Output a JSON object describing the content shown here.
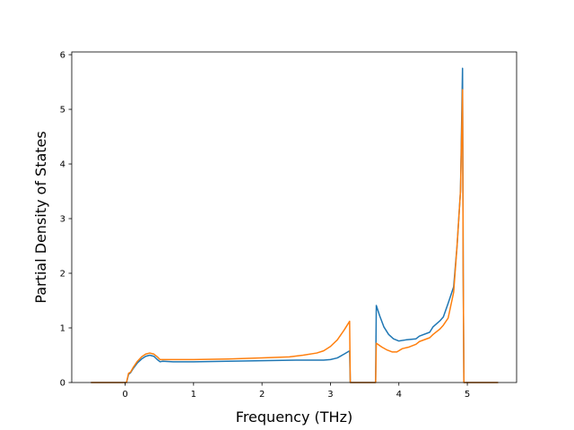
{
  "chart_data": {
    "type": "line",
    "title": "",
    "xlabel": "Frequency (THz)",
    "ylabel": "Partial Density of States",
    "xlim": [
      -0.78,
      5.72
    ],
    "ylim": [
      0,
      6.05
    ],
    "xticks": [
      0,
      1,
      2,
      3,
      4,
      5
    ],
    "yticks": [
      0,
      1,
      2,
      3,
      4,
      5,
      6
    ],
    "xtick_labels": [
      "0",
      "1",
      "2",
      "3",
      "4",
      "5"
    ],
    "ytick_labels": [
      "0",
      "1",
      "2",
      "3",
      "4",
      "5",
      "6"
    ],
    "grid": false,
    "legend": null,
    "series": [
      {
        "color": "#1f77b4",
        "points": [
          [
            -0.5,
            0
          ],
          [
            0.0,
            0
          ],
          [
            0.02,
            0
          ],
          [
            0.05,
            0.15
          ],
          [
            0.08,
            0.18
          ],
          [
            0.12,
            0.26
          ],
          [
            0.18,
            0.36
          ],
          [
            0.24,
            0.43
          ],
          [
            0.3,
            0.48
          ],
          [
            0.36,
            0.5
          ],
          [
            0.42,
            0.48
          ],
          [
            0.47,
            0.42
          ],
          [
            0.51,
            0.38
          ],
          [
            0.55,
            0.39
          ],
          [
            0.7,
            0.38
          ],
          [
            1.0,
            0.38
          ],
          [
            1.5,
            0.39
          ],
          [
            2.0,
            0.4
          ],
          [
            2.5,
            0.41
          ],
          [
            2.9,
            0.41
          ],
          [
            3.0,
            0.42
          ],
          [
            3.1,
            0.45
          ],
          [
            3.2,
            0.52
          ],
          [
            3.28,
            0.58
          ],
          [
            3.29,
            0
          ],
          [
            3.5,
            0
          ],
          [
            3.66,
            0
          ],
          [
            3.67,
            1.41
          ],
          [
            3.72,
            1.22
          ],
          [
            3.78,
            1.02
          ],
          [
            3.85,
            0.88
          ],
          [
            3.92,
            0.8
          ],
          [
            4.0,
            0.76
          ],
          [
            4.1,
            0.78
          ],
          [
            4.25,
            0.8
          ],
          [
            4.3,
            0.85
          ],
          [
            4.45,
            0.92
          ],
          [
            4.5,
            1.02
          ],
          [
            4.6,
            1.13
          ],
          [
            4.65,
            1.2
          ],
          [
            4.72,
            1.45
          ],
          [
            4.8,
            1.75
          ],
          [
            4.85,
            2.5
          ],
          [
            4.9,
            3.5
          ],
          [
            4.93,
            5.75
          ],
          [
            4.94,
            2.0
          ],
          [
            4.95,
            0
          ],
          [
            5.45,
            0
          ]
        ]
      },
      {
        "color": "#ff7f0e",
        "points": [
          [
            -0.5,
            0
          ],
          [
            0.0,
            0
          ],
          [
            0.02,
            0
          ],
          [
            0.05,
            0.17
          ],
          [
            0.08,
            0.19
          ],
          [
            0.12,
            0.28
          ],
          [
            0.18,
            0.39
          ],
          [
            0.24,
            0.47
          ],
          [
            0.3,
            0.52
          ],
          [
            0.36,
            0.54
          ],
          [
            0.42,
            0.52
          ],
          [
            0.47,
            0.47
          ],
          [
            0.51,
            0.42
          ],
          [
            0.55,
            0.42
          ],
          [
            0.7,
            0.42
          ],
          [
            1.0,
            0.42
          ],
          [
            1.5,
            0.43
          ],
          [
            2.0,
            0.45
          ],
          [
            2.4,
            0.47
          ],
          [
            2.6,
            0.5
          ],
          [
            2.8,
            0.54
          ],
          [
            2.9,
            0.58
          ],
          [
            3.0,
            0.66
          ],
          [
            3.1,
            0.78
          ],
          [
            3.2,
            0.96
          ],
          [
            3.28,
            1.12
          ],
          [
            3.29,
            0
          ],
          [
            3.5,
            0
          ],
          [
            3.66,
            0
          ],
          [
            3.67,
            0.72
          ],
          [
            3.75,
            0.65
          ],
          [
            3.82,
            0.6
          ],
          [
            3.9,
            0.56
          ],
          [
            3.97,
            0.56
          ],
          [
            4.05,
            0.62
          ],
          [
            4.15,
            0.65
          ],
          [
            4.25,
            0.7
          ],
          [
            4.3,
            0.75
          ],
          [
            4.45,
            0.82
          ],
          [
            4.5,
            0.88
          ],
          [
            4.6,
            0.98
          ],
          [
            4.65,
            1.05
          ],
          [
            4.72,
            1.18
          ],
          [
            4.8,
            1.65
          ],
          [
            4.85,
            2.5
          ],
          [
            4.9,
            3.5
          ],
          [
            4.93,
            5.36
          ],
          [
            4.94,
            2.0
          ],
          [
            4.95,
            0
          ],
          [
            5.45,
            0
          ]
        ]
      }
    ]
  }
}
